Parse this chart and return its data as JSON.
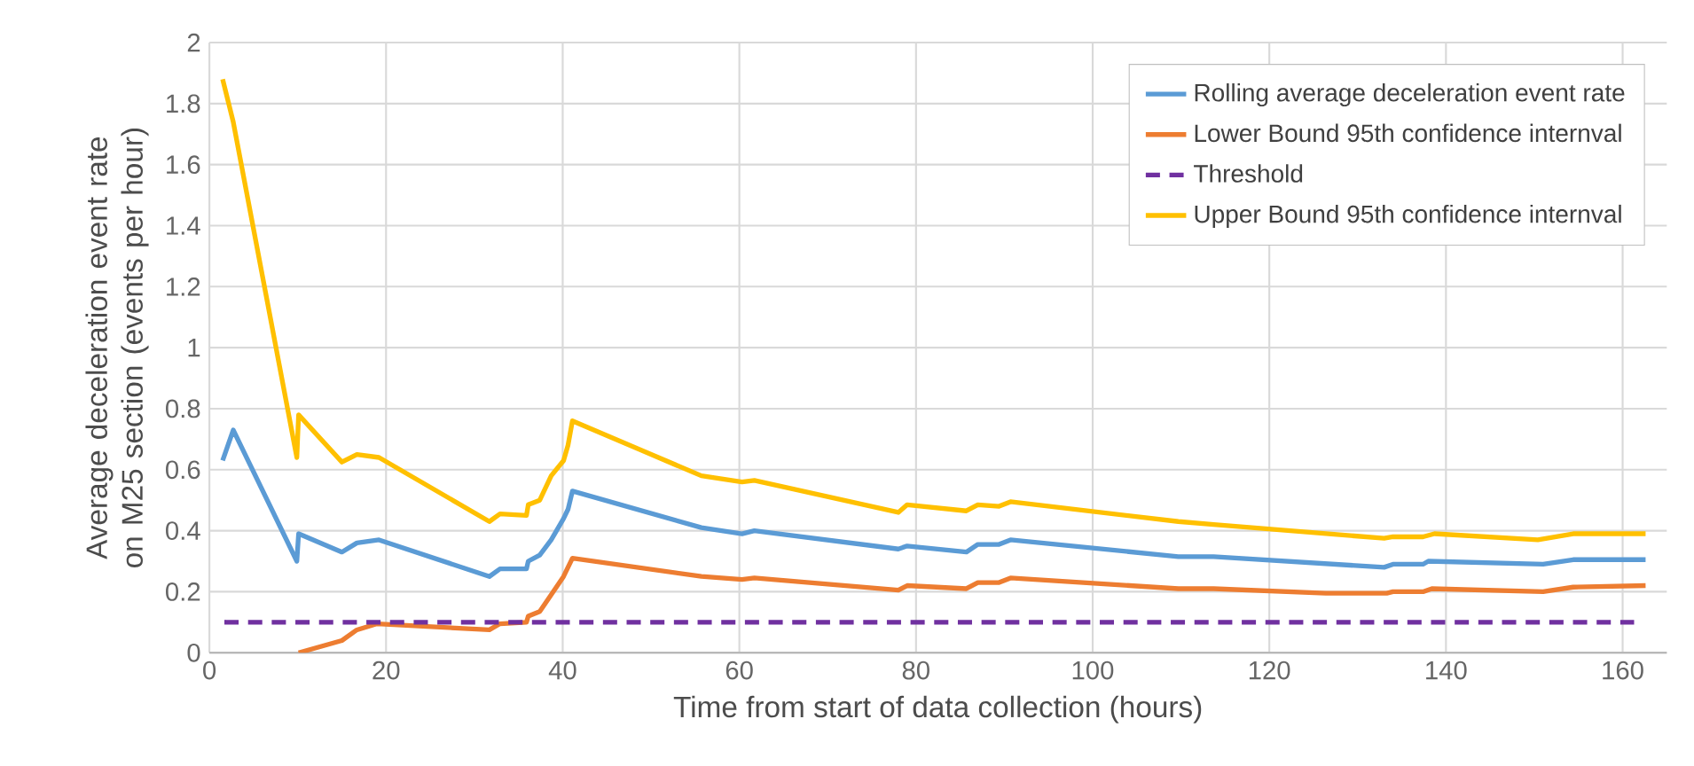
{
  "chart_data": {
    "type": "line",
    "xlabel": "Time from start of data collection (hours)",
    "ylabel": "Average deceleration event rate on M25 section (events per hour)",
    "xlim": [
      0,
      165
    ],
    "ylim": [
      0,
      2
    ],
    "xticks": [
      0,
      20,
      40,
      60,
      80,
      100,
      120,
      140,
      160
    ],
    "yticks": [
      0,
      0.2,
      0.4,
      0.6,
      0.8,
      1,
      1.2,
      1.4,
      1.6,
      1.8,
      2
    ],
    "grid": true,
    "legend": "top right",
    "marker": "none",
    "series": [
      {
        "name": "Rolling average deceleration event rate",
        "color": "#5b9bd5",
        "x": [
          1.5,
          2.7,
          9.9,
          10.1,
          15,
          16.7,
          19.2,
          31.7,
          32.9,
          35.9,
          36.1,
          37.4,
          38.7,
          40.1,
          40.6,
          41.1,
          55.7,
          60.3,
          61.7,
          78,
          79,
          85.7,
          87,
          89.4,
          90.7,
          109.7,
          113.7,
          133,
          134,
          137.4,
          138,
          151,
          154.4,
          162.6
        ],
        "values": [
          0.63,
          0.73,
          0.3,
          0.39,
          0.33,
          0.36,
          0.37,
          0.25,
          0.275,
          0.275,
          0.3,
          0.32,
          0.37,
          0.44,
          0.47,
          0.53,
          0.41,
          0.39,
          0.4,
          0.34,
          0.35,
          0.33,
          0.355,
          0.355,
          0.37,
          0.315,
          0.315,
          0.28,
          0.29,
          0.29,
          0.3,
          0.29,
          0.305,
          0.305
        ]
      },
      {
        "name": "Lower Bound 95th confidence internval",
        "color": "#ed7d31",
        "x": [
          10.1,
          15,
          16.7,
          19,
          31.7,
          32.9,
          35.9,
          36.1,
          37.4,
          38.7,
          40.1,
          41.1,
          55.7,
          60.3,
          61.7,
          78,
          79,
          85.7,
          87,
          89.4,
          90.7,
          109.7,
          113.7,
          126.4,
          133.3,
          134,
          137.4,
          138.4,
          151,
          154.4,
          162.6
        ],
        "values": [
          0.0,
          0.04,
          0.075,
          0.095,
          0.075,
          0.095,
          0.1,
          0.12,
          0.135,
          0.19,
          0.25,
          0.31,
          0.25,
          0.24,
          0.245,
          0.205,
          0.22,
          0.21,
          0.23,
          0.23,
          0.245,
          0.21,
          0.21,
          0.195,
          0.195,
          0.2,
          0.2,
          0.21,
          0.2,
          0.215,
          0.22
        ]
      },
      {
        "name": "Threshold",
        "color": "#7030a0",
        "line_style": "dashed",
        "x": [
          1.7,
          161.3
        ],
        "values": [
          0.1,
          0.1
        ]
      },
      {
        "name": "Upper Bound 95th confidence internval",
        "color": "#ffc000",
        "x": [
          1.5,
          2.7,
          9.9,
          10.1,
          15,
          16.7,
          19.2,
          31.7,
          32.9,
          35.9,
          36.1,
          37.4,
          38.7,
          40.1,
          40.6,
          41.1,
          55.7,
          60.3,
          61.7,
          78,
          79,
          85.7,
          87,
          89.4,
          90.7,
          109.7,
          113.7,
          133,
          134,
          137.4,
          138.7,
          150.4,
          154.4,
          162.6
        ],
        "values": [
          1.88,
          1.74,
          0.64,
          0.78,
          0.625,
          0.65,
          0.64,
          0.43,
          0.455,
          0.45,
          0.485,
          0.5,
          0.58,
          0.63,
          0.68,
          0.76,
          0.58,
          0.56,
          0.565,
          0.46,
          0.485,
          0.465,
          0.485,
          0.48,
          0.495,
          0.43,
          0.42,
          0.375,
          0.38,
          0.38,
          0.39,
          0.37,
          0.39,
          0.39
        ]
      }
    ]
  }
}
